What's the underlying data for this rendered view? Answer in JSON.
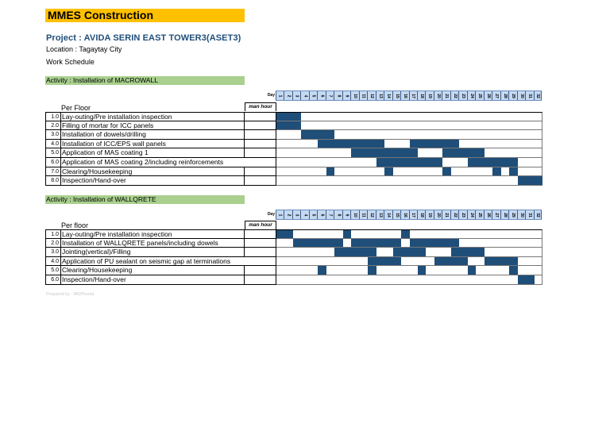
{
  "company": "MMES Construction",
  "project": "Project  : AVIDA SERIN EAST TOWER3(ASET3)",
  "location": "Location  :  Tagaytay City",
  "work_schedule": "Work Schedule",
  "colors": {
    "header_yellow": "#ffc000",
    "activity_green": "#a9d08e",
    "day_header": "#c5d9f1",
    "bar": "#1f4e79"
  },
  "day_label": "Day",
  "man_hour_label": "man hour",
  "days": [
    1,
    2,
    3,
    4,
    5,
    6,
    7,
    8,
    9,
    10,
    11,
    12,
    13,
    14,
    15,
    16,
    17,
    18,
    19,
    20,
    21,
    22,
    23,
    24,
    25,
    26,
    27,
    28,
    29,
    30,
    31,
    32
  ],
  "sections": [
    {
      "activity": "Activity : Installation of MACROWALL",
      "per_floor_label": "Per Floor",
      "tasks": [
        {
          "num": "1.0",
          "desc": "Lay-outing/Pre installation inspection",
          "bars": [
            [
              1,
              3
            ]
          ]
        },
        {
          "num": "2.0",
          "desc": "Filling of mortar for ICC panels",
          "bars": [
            [
              1,
              3
            ]
          ]
        },
        {
          "num": "3.0",
          "desc": "Installation of dowels/drilling",
          "bars": [
            [
              4,
              7
            ]
          ]
        },
        {
          "num": "4.0",
          "desc": "Installation of ICC/EPS wall panels",
          "bars": [
            [
              6,
              13
            ],
            [
              17,
              22
            ]
          ]
        },
        {
          "num": "5.0",
          "desc": "Application of MAS coating 1",
          "bars": [
            [
              10,
              17
            ],
            [
              21,
              25
            ]
          ]
        },
        {
          "num": "6.0",
          "desc": "Application of MAS coating 2/including  reinforcements",
          "bars": [
            [
              13,
              20
            ],
            [
              24,
              29
            ]
          ]
        },
        {
          "num": "7.0",
          "desc": "Clearing/Housekeeping",
          "bars": [
            [
              7,
              7
            ],
            [
              14,
              14
            ],
            [
              21,
              21
            ],
            [
              27,
              27
            ],
            [
              29,
              29
            ]
          ]
        },
        {
          "num": "8.0",
          "desc": "Inspection/Hand-over",
          "bars": [
            [
              30,
              32
            ]
          ]
        }
      ]
    },
    {
      "activity": "Activity : Installation of WALLQRETE",
      "per_floor_label": "Per floor",
      "tasks": [
        {
          "num": "1.0",
          "desc": "Lay-outing/Pre installation inspection",
          "bars": [
            [
              1,
              2
            ],
            [
              9,
              9
            ],
            [
              16,
              16
            ]
          ]
        },
        {
          "num": "2.0",
          "desc": "Installation of WALLQRETE panels/including dowels",
          "bars": [
            [
              3,
              8
            ],
            [
              10,
              15
            ],
            [
              17,
              22
            ]
          ]
        },
        {
          "num": "3.0",
          "desc": "Jointing(vertical)/Filling",
          "bars": [
            [
              8,
              12
            ],
            [
              15,
              18
            ],
            [
              22,
              25
            ]
          ]
        },
        {
          "num": "4.0",
          "desc": "Application of PU sealant on seismic gap at terminations",
          "bars": [
            [
              12,
              15
            ],
            [
              20,
              23
            ],
            [
              26,
              29
            ]
          ]
        },
        {
          "num": "5.0",
          "desc": "Clearing/Housekeeping",
          "bars": [
            [
              6,
              6
            ],
            [
              12,
              12
            ],
            [
              18,
              18
            ],
            [
              24,
              24
            ],
            [
              29,
              29
            ]
          ]
        },
        {
          "num": "6.0",
          "desc": "Inspection/Hand-over",
          "bars": [
            [
              30,
              31
            ]
          ]
        }
      ]
    }
  ],
  "footer": "Prepared by  : MGPineda"
}
